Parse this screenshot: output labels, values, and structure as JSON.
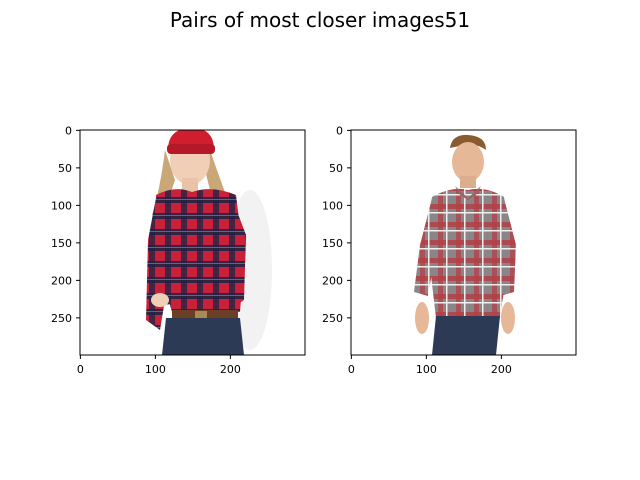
{
  "figure": {
    "title": "Pairs of most closer images51"
  },
  "panels": [
    {
      "name": "left-image-panel",
      "image_desc": "woman-red-beanie-plaid-shirt",
      "x_ticks": [
        "0",
        "100",
        "200"
      ],
      "y_ticks": [
        "0",
        "50",
        "100",
        "150",
        "200",
        "250"
      ],
      "xlim": [
        0,
        299
      ],
      "ylim": [
        299,
        0
      ]
    },
    {
      "name": "right-image-panel",
      "image_desc": "man-grey-red-plaid-shirt",
      "x_ticks": [
        "0",
        "100",
        "200"
      ],
      "y_ticks": [
        "0",
        "50",
        "100",
        "150",
        "200",
        "250"
      ],
      "xlim": [
        0,
        299
      ],
      "ylim": [
        299,
        0
      ]
    }
  ],
  "colors": {
    "woman_shirt_red": "#c8213a",
    "woman_shirt_navy": "#1c2345",
    "beanie": "#cf1f2f",
    "man_shirt_grey": "#7d7b7d",
    "man_shirt_red": "#b6484c",
    "jeans": "#2c3a55"
  }
}
